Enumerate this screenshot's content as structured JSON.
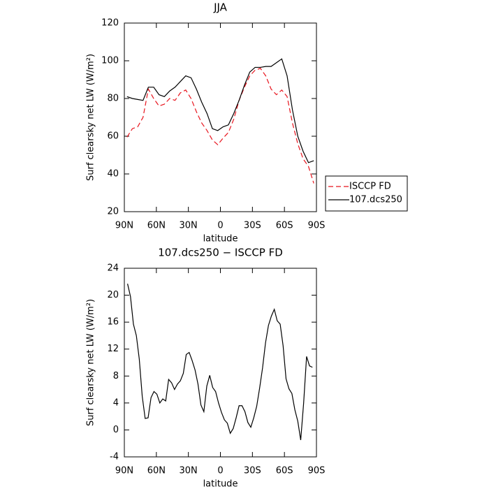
{
  "chart_data": [
    {
      "type": "line",
      "title": "JJA",
      "xlabel": "latitude",
      "ylabel": "Surf clearsky net LW (W/m²)",
      "x": [
        87.5,
        82.5,
        77.5,
        72.5,
        67.5,
        62.5,
        57.5,
        52.5,
        47.5,
        42.5,
        37.5,
        32.5,
        27.5,
        22.5,
        17.5,
        12.5,
        7.5,
        2.5,
        -2.5,
        -7.5,
        -12.5,
        -17.5,
        -22.5,
        -27.5,
        -32.5,
        -37.5,
        -42.5,
        -47.5,
        -52.5,
        -57.5,
        -62.5,
        -67.5,
        -72.5,
        -77.5,
        -82.5,
        -87.5
      ],
      "series": [
        {
          "name": "ISCCP FD",
          "color": "#e8141d",
          "dashed": true,
          "values": [
            59.5,
            64,
            65,
            70,
            85,
            80,
            76,
            77,
            80,
            79,
            83,
            84.5,
            80,
            73,
            67,
            63,
            58,
            55.5,
            59,
            62,
            69,
            79,
            86,
            92,
            95,
            96,
            92,
            85,
            82,
            84.5,
            81,
            67,
            56,
            48,
            44,
            35
          ]
        },
        {
          "name": "107.dcs250",
          "color": "#000000",
          "dashed": false,
          "values": [
            81,
            80,
            79.5,
            79,
            86,
            86,
            82,
            81,
            84,
            86,
            89,
            92,
            91,
            85,
            78,
            72,
            64,
            63,
            65,
            66,
            72,
            79,
            87,
            94,
            96.5,
            96.5,
            97,
            97,
            99,
            101,
            92,
            74,
            60,
            52,
            46,
            47
          ]
        }
      ],
      "xlim": [
        90,
        -90
      ],
      "xticks": [
        {
          "value": 90,
          "label": "90N"
        },
        {
          "value": 60,
          "label": "60N"
        },
        {
          "value": 30,
          "label": "30N"
        },
        0,
        {
          "value": -30,
          "label": "30S"
        },
        {
          "value": -60,
          "label": "60S"
        },
        {
          "value": -90,
          "label": "90S"
        }
      ],
      "ylim": [
        20,
        120
      ],
      "yticks": [
        20,
        40,
        60,
        80,
        100,
        120
      ],
      "legend": "outside-right"
    },
    {
      "type": "line",
      "title": "107.dcs250 − ISCCP FD",
      "xlabel": "latitude",
      "ylabel": "Surf clearsky net LW (W/m²)",
      "x": [
        87,
        84.25,
        81.5,
        78.75,
        76,
        73.25,
        70.5,
        67.75,
        65,
        62.25,
        59.5,
        56.75,
        54,
        51.25,
        48.5,
        45.75,
        43,
        40.25,
        37.5,
        34.75,
        32,
        29.25,
        26.5,
        23.75,
        21,
        18.25,
        15.5,
        12.75,
        10,
        7.25,
        4.5,
        1.75,
        -1,
        -3.75,
        -6.5,
        -9.25,
        -12,
        -14.75,
        -17.5,
        -20.25,
        -23,
        -25.75,
        -28.5,
        -31.25,
        -34,
        -36.75,
        -39.5,
        -42.25,
        -45,
        -47.75,
        -50.5,
        -53.25,
        -56,
        -58.75,
        -61.5,
        -64.25,
        -67,
        -69.75,
        -72.5,
        -75.25,
        -78,
        -80.75,
        -83.5,
        -86.25
      ],
      "color": "#000000",
      "values": [
        21.7,
        19.8,
        15.7,
        14,
        10.5,
        5,
        1.7,
        1.8,
        4.8,
        5.7,
        5.3,
        4,
        4.6,
        4.3,
        7.5,
        7,
        6,
        6.8,
        7.3,
        8.4,
        11.2,
        11.5,
        10.3,
        8.9,
        6.8,
        3.7,
        2.7,
        6.5,
        8.1,
        6.3,
        5.7,
        4,
        2.6,
        1.5,
        1,
        -0.5,
        0.2,
        1.8,
        3.6,
        3.6,
        2.7,
        1.1,
        0.4,
        1.8,
        3.5,
        6.2,
        9.2,
        12.9,
        15.5,
        16.9,
        17.9,
        16.2,
        15.7,
        12.5,
        7.6,
        6.1,
        5.4,
        3,
        1.3,
        -1.5,
        4,
        10.9,
        9.5,
        9.3
      ],
      "xlim": [
        90,
        -90
      ],
      "xticks": [
        {
          "value": 90,
          "label": "90N"
        },
        {
          "value": 60,
          "label": "60N"
        },
        {
          "value": 30,
          "label": "30N"
        },
        0,
        {
          "value": -30,
          "label": "30S"
        },
        {
          "value": -60,
          "label": "60S"
        },
        {
          "value": -90,
          "label": "90S"
        }
      ],
      "ylim": [
        -4,
        24
      ],
      "yticks": [
        -4,
        0,
        4,
        8,
        12,
        16,
        20,
        24
      ]
    }
  ]
}
